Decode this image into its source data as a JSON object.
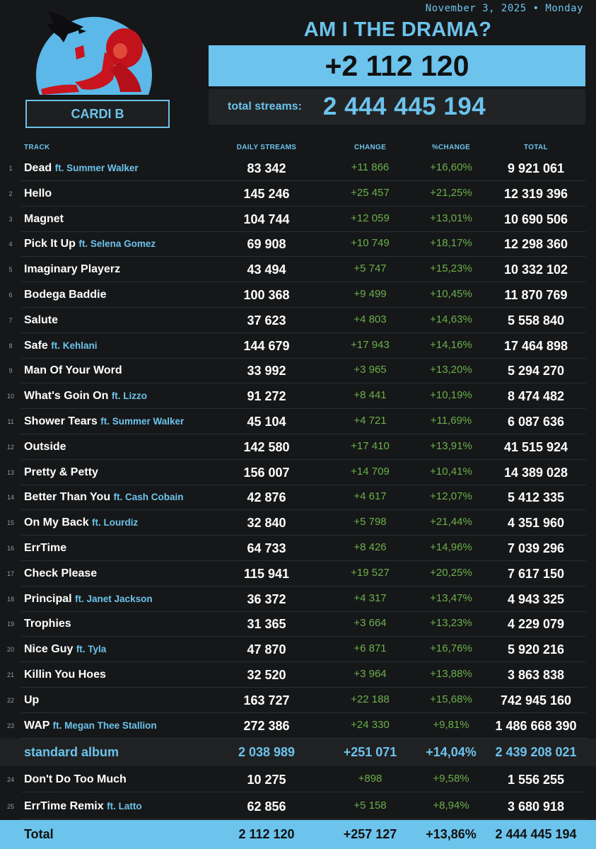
{
  "header": {
    "date": "November 3, 2025 • Monday",
    "artist": "CARDI B",
    "album_title": "AM I THE DRAMA?",
    "daily_total": "+2 112 120",
    "total_streams_label": "total streams:",
    "total_streams_value": "2 444 445 194"
  },
  "columns": {
    "track": "TRACK",
    "daily": "DAILY STREAMS",
    "change": "CHANGE",
    "pct": "%CHANGE",
    "total": "TOTAL"
  },
  "tracks": [
    {
      "num": "1",
      "title": "Dead",
      "feat": "ft.  Summer Walker",
      "daily": "83 342",
      "change": "+11 866",
      "pct": "+16,60%",
      "total": "9 921 061"
    },
    {
      "num": "2",
      "title": "Hello",
      "feat": "",
      "daily": "145 246",
      "change": "+25 457",
      "pct": "+21,25%",
      "total": "12 319 396"
    },
    {
      "num": "3",
      "title": "Magnet",
      "feat": "",
      "daily": "104 744",
      "change": "+12 059",
      "pct": "+13,01%",
      "total": "10 690 506"
    },
    {
      "num": "4",
      "title": "Pick It Up",
      "feat": "ft. Selena Gomez",
      "daily": "69 908",
      "change": "+10 749",
      "pct": "+18,17%",
      "total": "12 298 360"
    },
    {
      "num": "5",
      "title": "Imaginary Playerz",
      "feat": "",
      "daily": "43 494",
      "change": "+5 747",
      "pct": "+15,23%",
      "total": "10 332 102"
    },
    {
      "num": "6",
      "title": "Bodega Baddie",
      "feat": "",
      "daily": "100 368",
      "change": "+9 499",
      "pct": "+10,45%",
      "total": "11 870 769"
    },
    {
      "num": "7",
      "title": "Salute",
      "feat": "",
      "daily": "37 623",
      "change": "+4 803",
      "pct": "+14,63%",
      "total": "5 558 840"
    },
    {
      "num": "8",
      "title": "Safe",
      "feat": "ft. Kehlani",
      "daily": "144 679",
      "change": "+17 943",
      "pct": "+14,16%",
      "total": "17 464 898"
    },
    {
      "num": "9",
      "title": "Man Of Your Word",
      "feat": "",
      "daily": "33 992",
      "change": "+3 965",
      "pct": "+13,20%",
      "total": "5 294 270"
    },
    {
      "num": "10",
      "title": "What's Goin On",
      "feat": "ft. Lizzo",
      "daily": "91 272",
      "change": "+8 441",
      "pct": "+10,19%",
      "total": "8 474 482"
    },
    {
      "num": "11",
      "title": "Shower Tears",
      "feat": "ft.  Summer Walker",
      "daily": "45 104",
      "change": "+4 721",
      "pct": "+11,69%",
      "total": "6 087 636"
    },
    {
      "num": "12",
      "title": "Outside",
      "feat": "",
      "daily": "142 580",
      "change": "+17 410",
      "pct": "+13,91%",
      "total": "41 515 924"
    },
    {
      "num": "13",
      "title": "Pretty & Petty",
      "feat": "",
      "daily": "156 007",
      "change": "+14 709",
      "pct": "+10,41%",
      "total": "14 389 028"
    },
    {
      "num": "14",
      "title": "Better Than You",
      "feat": "ft. Cash Cobain",
      "daily": "42 876",
      "change": "+4 617",
      "pct": "+12,07%",
      "total": "5 412 335"
    },
    {
      "num": "15",
      "title": "On My Back",
      "feat": " ft. Lourdiz",
      "daily": "32 840",
      "change": "+5 798",
      "pct": "+21,44%",
      "total": "4 351 960"
    },
    {
      "num": "16",
      "title": "ErrTime",
      "feat": "",
      "daily": "64 733",
      "change": "+8 426",
      "pct": "+14,96%",
      "total": "7 039 296"
    },
    {
      "num": "17",
      "title": "Check Please",
      "feat": "",
      "daily": "115 941",
      "change": "+19 527",
      "pct": "+20,25%",
      "total": "7 617 150"
    },
    {
      "num": "18",
      "title": "Principal",
      "feat": " ft. Janet Jackson",
      "daily": "36 372",
      "change": "+4 317",
      "pct": "+13,47%",
      "total": "4 943 325"
    },
    {
      "num": "19",
      "title": "Trophies",
      "feat": "",
      "daily": "31 365",
      "change": "+3 664",
      "pct": "+13,23%",
      "total": "4 229 079"
    },
    {
      "num": "20",
      "title": "Nice Guy",
      "feat": " ft. Tyla",
      "daily": "47 870",
      "change": "+6 871",
      "pct": "+16,76%",
      "total": "5 920 216"
    },
    {
      "num": "21",
      "title": "Killin You Hoes",
      "feat": "",
      "daily": "32 520",
      "change": "+3 964",
      "pct": "+13,88%",
      "total": "3 863 838"
    },
    {
      "num": "22",
      "title": "Up",
      "feat": "",
      "daily": "163 727",
      "change": "+22 188",
      "pct": "+15,68%",
      "total": "742 945 160"
    },
    {
      "num": "23",
      "title": "WAP",
      "feat": "ft. Megan Thee Stallion",
      "daily": "272 386",
      "change": "+24 330",
      "pct": "+9,81%",
      "total": "1 486 668 390"
    }
  ],
  "album_row": {
    "label": "standard album",
    "daily": "2 038 989",
    "change": "+251 071",
    "pct": "+14,04%",
    "total": "2 439 208 021"
  },
  "bonus_tracks": [
    {
      "num": "24",
      "title": "Don't Do Too Much",
      "feat": "",
      "daily": "10 275",
      "change": "+898",
      "pct": "+9,58%",
      "total": "1 556 255"
    },
    {
      "num": "25",
      "title": "ErrTime Remix",
      "feat": "ft. Latto",
      "daily": "62 856",
      "change": "+5 158",
      "pct": "+8,94%",
      "total": "3 680 918"
    }
  ],
  "grand_row": {
    "label": "Total",
    "daily": "2 112 120",
    "change": "+257 127",
    "pct": "+13,86%",
    "total": "2 444 445 194"
  },
  "colors": {
    "accent": "#6cc3ec",
    "positive": "#6ab04c",
    "background": "#161718"
  }
}
